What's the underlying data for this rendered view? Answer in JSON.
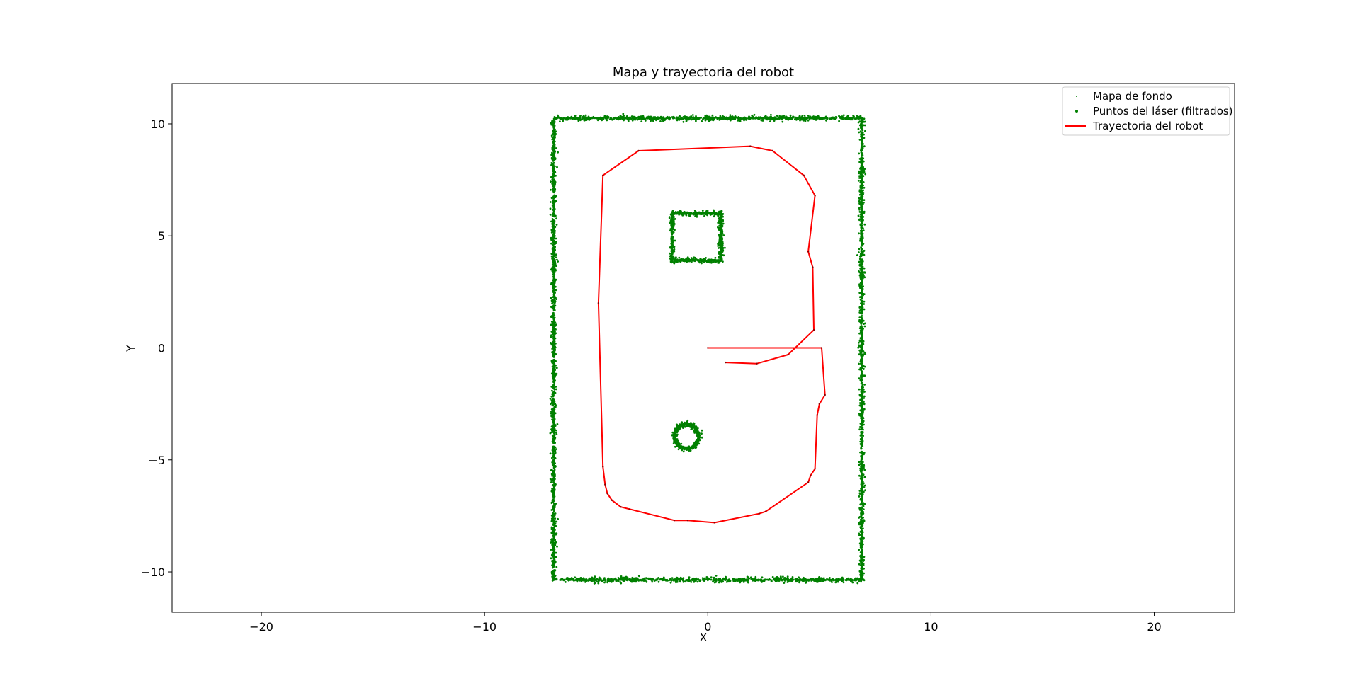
{
  "chart_data": {
    "type": "scatter",
    "title": "Mapa y trayectoria del robot",
    "xlabel": "X",
    "ylabel": "Y",
    "xlim": [
      -24.0,
      23.6
    ],
    "ylim": [
      -11.8,
      11.8
    ],
    "xticks": [
      -20,
      -10,
      0,
      10,
      20
    ],
    "yticks": [
      -10,
      -5,
      0,
      5,
      10
    ],
    "grid": false,
    "legend_position": "upper right",
    "series": [
      {
        "name": "Mapa de fondo",
        "kind": "points",
        "color": "#008000",
        "shapes": [
          {
            "shape": "rect",
            "x0": -6.9,
            "y0": -10.35,
            "x1": 6.9,
            "y1": 10.25
          },
          {
            "shape": "rect",
            "x0": -1.6,
            "y0": 3.9,
            "x1": 0.6,
            "y1": 6.0
          },
          {
            "shape": "circle",
            "cx": -0.95,
            "cy": -3.95,
            "r": 0.55
          }
        ]
      },
      {
        "name": "Puntos del láser (filtrados)",
        "kind": "points",
        "color": "#008000",
        "shapes": [
          {
            "shape": "rect",
            "x0": -6.9,
            "y0": -10.35,
            "x1": 6.9,
            "y1": 10.25
          },
          {
            "shape": "rect",
            "x0": -1.6,
            "y0": 3.9,
            "x1": 0.6,
            "y1": 6.0
          },
          {
            "shape": "circle",
            "cx": -0.95,
            "cy": -3.95,
            "r": 0.55
          }
        ]
      },
      {
        "name": "Trayectoria del robot",
        "kind": "line",
        "color": "#ff0000",
        "points": [
          [
            0.0,
            0.0
          ],
          [
            5.1,
            0.0
          ],
          [
            5.25,
            -2.1
          ],
          [
            5.0,
            -2.5
          ],
          [
            4.9,
            -3.0
          ],
          [
            4.8,
            -5.4
          ],
          [
            4.6,
            -5.7
          ],
          [
            4.5,
            -6.0
          ],
          [
            2.6,
            -7.3
          ],
          [
            2.3,
            -7.4
          ],
          [
            0.3,
            -7.8
          ],
          [
            -0.9,
            -7.7
          ],
          [
            -1.5,
            -7.7
          ],
          [
            -3.5,
            -7.2
          ],
          [
            -3.9,
            -7.1
          ],
          [
            -4.3,
            -6.8
          ],
          [
            -4.5,
            -6.5
          ],
          [
            -4.6,
            -6.1
          ],
          [
            -4.7,
            -5.3
          ],
          [
            -4.9,
            2.0
          ],
          [
            -4.7,
            7.7
          ],
          [
            -3.1,
            8.8
          ],
          [
            1.9,
            9.0
          ],
          [
            2.9,
            8.8
          ],
          [
            4.3,
            7.7
          ],
          [
            4.8,
            6.8
          ],
          [
            4.5,
            4.3
          ],
          [
            4.7,
            3.6
          ],
          [
            4.75,
            0.8
          ],
          [
            3.6,
            -0.3
          ],
          [
            2.2,
            -0.7
          ],
          [
            0.8,
            -0.65
          ]
        ]
      }
    ]
  }
}
